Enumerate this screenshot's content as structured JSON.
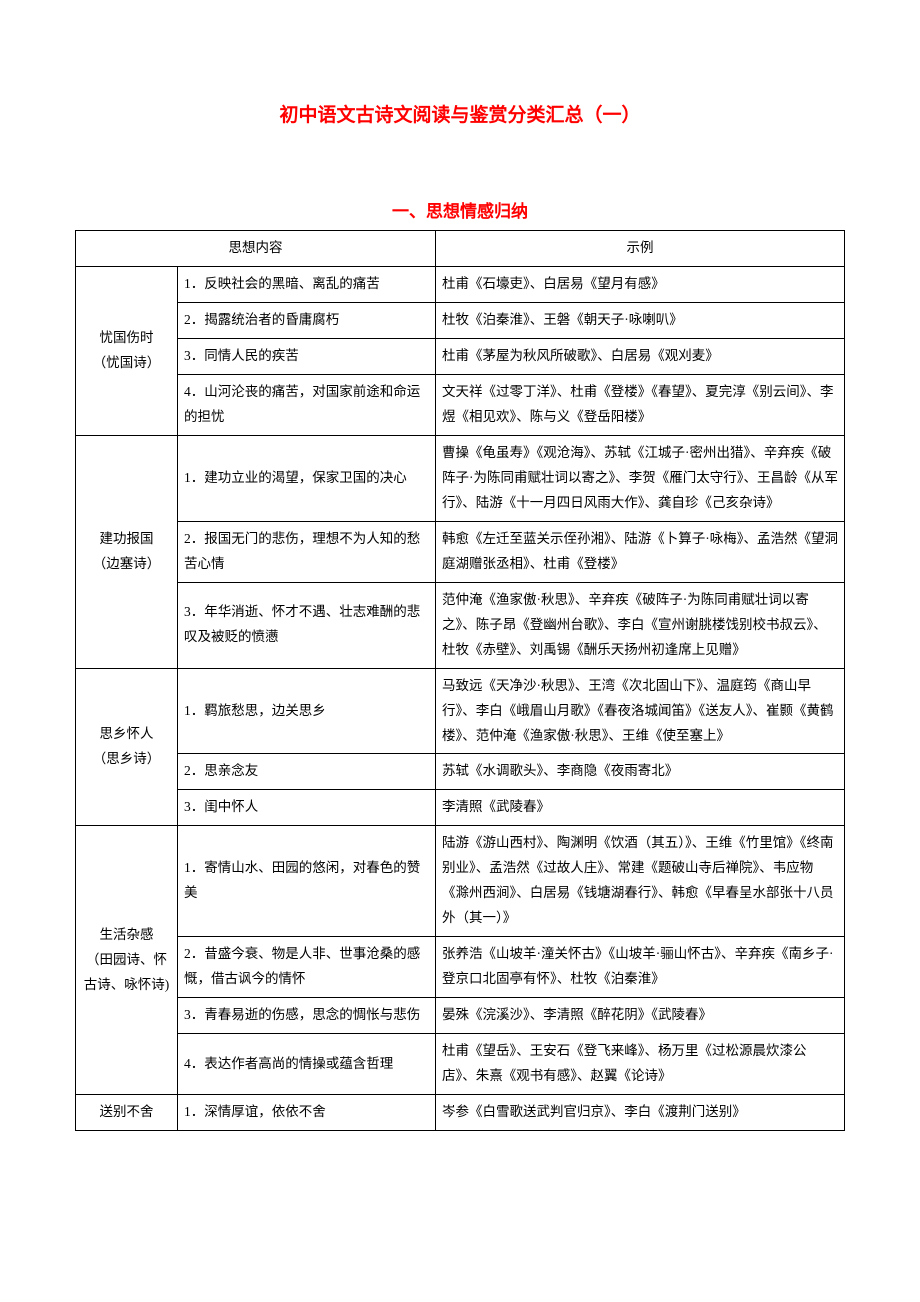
{
  "title": "初中语文古诗文阅读与鉴赏分类汇总（一）",
  "subtitle": "一、思想情感归纳",
  "headers": {
    "thought": "思想内容",
    "example": "示例"
  },
  "rows": [
    {
      "cat": "忧国伤时\n（忧国诗）",
      "items": [
        {
          "c": "1．反映社会的黑暗、离乱的痛苦",
          "e": "杜甫《石壕吏》、白居易《望月有感》"
        },
        {
          "c": "2．揭露统治者的昏庸腐朽",
          "e": "杜牧《泊秦淮》、王磐《朝天子·咏喇叭》"
        },
        {
          "c": "3．同情人民的疾苦",
          "e": "杜甫《茅屋为秋风所破歌》、白居易《观刈麦》"
        },
        {
          "c": "4．山河沦丧的痛苦，对国家前途和命运的担忧",
          "e": "文天祥《过零丁洋》、杜甫《登楼》《春望》、夏完淳《别云间》、李煜《相见欢》、陈与义《登岳阳楼》"
        }
      ]
    },
    {
      "cat": "建功报国\n（边塞诗）",
      "items": [
        {
          "c": "1．建功立业的渴望，保家卫国的决心",
          "e": "曹操《龟虽寿》《观沧海》、苏轼《江城子·密州出猎》、辛弃疾《破阵子·为陈同甫赋壮词以寄之》、李贺《雁门太守行》、王昌龄《从军行》、陆游《十一月四日风雨大作》、龚自珍《己亥杂诗》"
        },
        {
          "c": "2．报国无门的悲伤，理想不为人知的愁苦心情",
          "e": "韩愈《左迁至蓝关示侄孙湘》、陆游《卜算子·咏梅》、孟浩然《望洞庭湖赠张丞相》、杜甫《登楼》"
        },
        {
          "c": "3．年华消逝、怀才不遇、壮志难酬的悲叹及被贬的愤懑",
          "e": "范仲淹《渔家傲·秋思》、辛弃疾《破阵子·为陈同甫赋壮词以寄之》、陈子昂《登幽州台歌》、李白《宣州谢朓楼饯别校书叔云》、杜牧《赤壁》、刘禹锡《酬乐天扬州初逢席上见赠》"
        }
      ]
    },
    {
      "cat": "思乡怀人\n（思乡诗）",
      "items": [
        {
          "c": "1．羁旅愁思，边关思乡",
          "e": "马致远《天净沙·秋思》、王湾《次北固山下》、温庭筠《商山早行》、李白《峨眉山月歌》《春夜洛城闻笛》《送友人》、崔颢《黄鹤楼》、范仲淹《渔家傲·秋思》、王维《使至塞上》"
        },
        {
          "c": "2．思亲念友",
          "e": "苏轼《水调歌头》、李商隐《夜雨寄北》"
        },
        {
          "c": "3．闺中怀人",
          "e": "李清照《武陵春》"
        }
      ]
    },
    {
      "cat": "生活杂感\n（田园诗、怀古诗、咏怀诗)",
      "items": [
        {
          "c": "1．寄情山水、田园的悠闲，对春色的赞美",
          "e": "陆游《游山西村》、陶渊明《饮酒（其五）》、王维《竹里馆》《终南别业》、孟浩然《过故人庄》、常建《题破山寺后禅院》、韦应物《滁州西涧》、白居易《钱塘湖春行》、韩愈《早春呈水部张十八员外（其一）》"
        },
        {
          "c": "2．昔盛今衰、物是人非、世事沧桑的感慨，借古讽今的情怀",
          "e": "张养浩《山坡羊·潼关怀古》《山坡羊·骊山怀古》、辛弃疾《南乡子·登京口北固亭有怀》、杜牧《泊秦淮》"
        },
        {
          "c": "3．青春易逝的伤感，思念的惆怅与悲伤",
          "e": "晏殊《浣溪沙》、李清照《醉花阴》《武陵春》"
        },
        {
          "c": "4．表达作者高尚的情操或蕴含哲理",
          "e": "杜甫《望岳》、王安石《登飞来峰》、杨万里《过松源晨炊漆公店》、朱熹《观书有感》、赵翼《论诗》"
        }
      ]
    },
    {
      "cat": "送别不舍",
      "items": [
        {
          "c": "1．深情厚谊，依依不舍",
          "e": "岑参《白雪歌送武判官归京》、李白《渡荆门送别》"
        }
      ]
    }
  ]
}
